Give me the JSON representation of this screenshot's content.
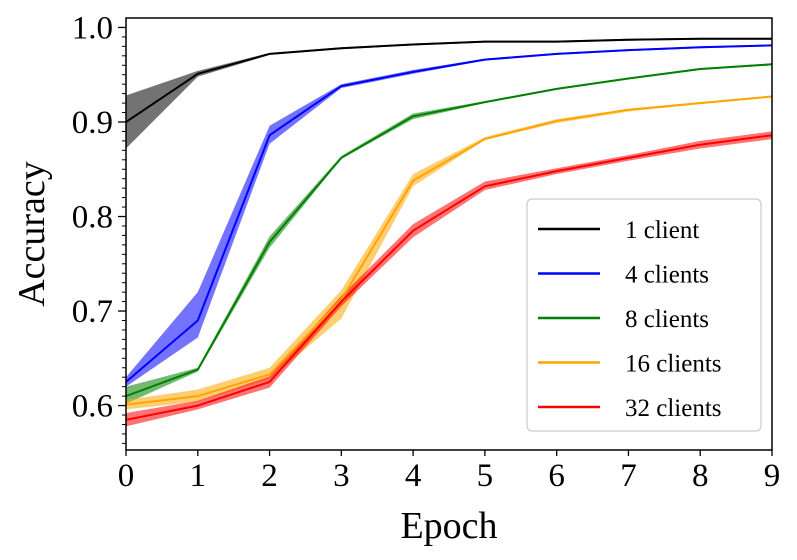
{
  "chart_data": {
    "type": "line",
    "title": "",
    "xlabel": "Epoch",
    "ylabel": "Accuracy",
    "xlim": [
      0,
      9
    ],
    "ylim": [
      0.553,
      1.01
    ],
    "x": [
      0,
      1,
      2,
      3,
      4,
      5,
      6,
      7,
      8,
      9
    ],
    "x_ticks": [
      "0",
      "1",
      "2",
      "3",
      "4",
      "5",
      "6",
      "7",
      "8",
      "9"
    ],
    "y_ticks": [
      {
        "value": 0.6,
        "label": "0.6"
      },
      {
        "value": 0.7,
        "label": "0.7"
      },
      {
        "value": 0.8,
        "label": "0.8"
      },
      {
        "value": 0.9,
        "label": "0.9"
      },
      {
        "value": 1.0,
        "label": "1.0"
      }
    ],
    "legend_position": "lower-right",
    "series": [
      {
        "name": "1 client",
        "color": "#000000",
        "values": [
          0.9,
          0.951,
          0.972,
          0.978,
          0.982,
          0.985,
          0.985,
          0.987,
          0.988,
          0.988
        ],
        "lower": [
          0.872,
          0.948,
          0.971,
          0.977,
          0.981,
          0.984,
          0.984,
          0.986,
          0.987,
          0.987
        ],
        "upper": [
          0.928,
          0.954,
          0.973,
          0.979,
          0.983,
          0.986,
          0.986,
          0.988,
          0.989,
          0.989
        ]
      },
      {
        "name": "4 clients",
        "color": "#0000ff",
        "values": [
          0.625,
          0.69,
          0.886,
          0.938,
          0.953,
          0.966,
          0.972,
          0.976,
          0.979,
          0.981
        ],
        "lower": [
          0.62,
          0.672,
          0.877,
          0.936,
          0.951,
          0.965,
          0.971,
          0.975,
          0.978,
          0.98
        ],
        "upper": [
          0.63,
          0.72,
          0.896,
          0.94,
          0.955,
          0.967,
          0.973,
          0.977,
          0.98,
          0.982
        ]
      },
      {
        "name": "8 clients",
        "color": "#008000",
        "values": [
          0.61,
          0.638,
          0.773,
          0.862,
          0.906,
          0.921,
          0.935,
          0.946,
          0.956,
          0.961
        ],
        "lower": [
          0.602,
          0.636,
          0.767,
          0.861,
          0.903,
          0.92,
          0.934,
          0.945,
          0.955,
          0.96
        ],
        "upper": [
          0.62,
          0.64,
          0.779,
          0.864,
          0.909,
          0.922,
          0.936,
          0.947,
          0.957,
          0.962
        ]
      },
      {
        "name": "16 clients",
        "color": "#ffa500",
        "values": [
          0.601,
          0.61,
          0.633,
          0.712,
          0.838,
          0.882,
          0.901,
          0.913,
          0.92,
          0.927
        ],
        "lower": [
          0.596,
          0.604,
          0.628,
          0.692,
          0.832,
          0.881,
          0.899,
          0.911,
          0.919,
          0.926
        ],
        "upper": [
          0.606,
          0.617,
          0.64,
          0.722,
          0.845,
          0.884,
          0.903,
          0.914,
          0.921,
          0.928
        ]
      },
      {
        "name": "32 clients",
        "color": "#ff0000",
        "values": [
          0.585,
          0.6,
          0.625,
          0.71,
          0.785,
          0.832,
          0.848,
          0.862,
          0.876,
          0.886
        ],
        "lower": [
          0.578,
          0.596,
          0.619,
          0.705,
          0.778,
          0.828,
          0.845,
          0.859,
          0.872,
          0.882
        ],
        "upper": [
          0.592,
          0.605,
          0.631,
          0.716,
          0.792,
          0.837,
          0.851,
          0.865,
          0.88,
          0.89
        ]
      }
    ]
  }
}
